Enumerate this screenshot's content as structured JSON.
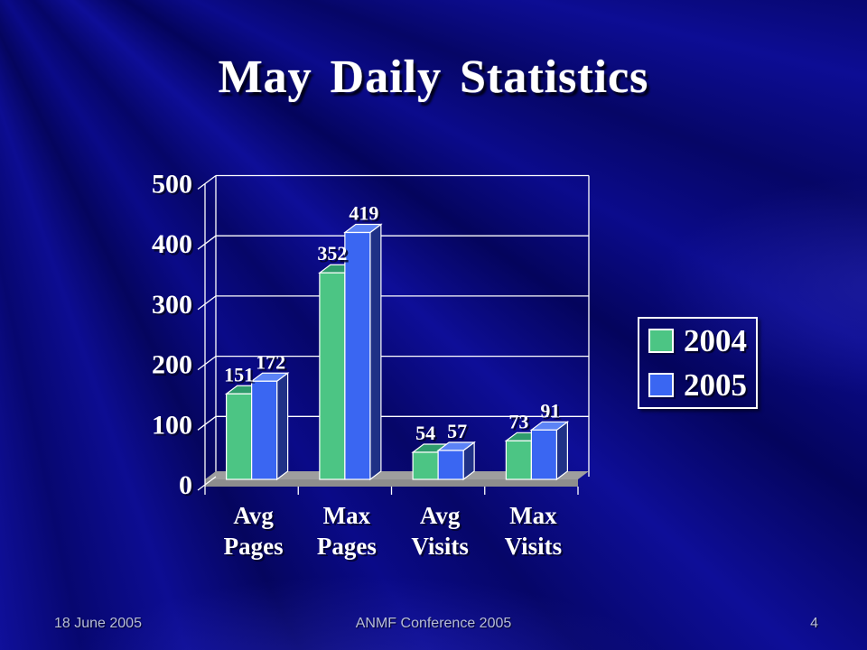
{
  "slide": {
    "footer": {
      "date": "18 June 2005",
      "center": "ANMF Conference 2005",
      "page_number": "4"
    }
  },
  "chart_data": {
    "type": "bar",
    "title": "May Daily Statistics",
    "categories": [
      "Avg Pages",
      "Max Pages",
      "Avg Visits",
      "Max Visits"
    ],
    "series": [
      {
        "name": "2004",
        "values": [
          151,
          352,
          54,
          73
        ],
        "color": "#4cc584",
        "top_color": "#2f9c6c",
        "side_color": "#1f7a52"
      },
      {
        "name": "2005",
        "values": [
          172,
          419,
          57,
          91
        ],
        "color": "#3a66f2",
        "top_color": "#5c83f6",
        "side_color": "#1f3186"
      }
    ],
    "xlabel": "",
    "ylabel": "",
    "ylim": [
      0,
      500
    ],
    "yticks": [
      0,
      100,
      200,
      300,
      400,
      500
    ],
    "grid": true,
    "legend_position": "right",
    "value_labels": true,
    "style": {
      "grid_color": "#ffffff",
      "bar_outline": "#ffffff",
      "floor_color": "#9e9e9e",
      "floor_front_color": "#8d8d8d",
      "text_color": "#ffffff",
      "text_shadow": "rgba(5,5,40,0.85)"
    }
  }
}
